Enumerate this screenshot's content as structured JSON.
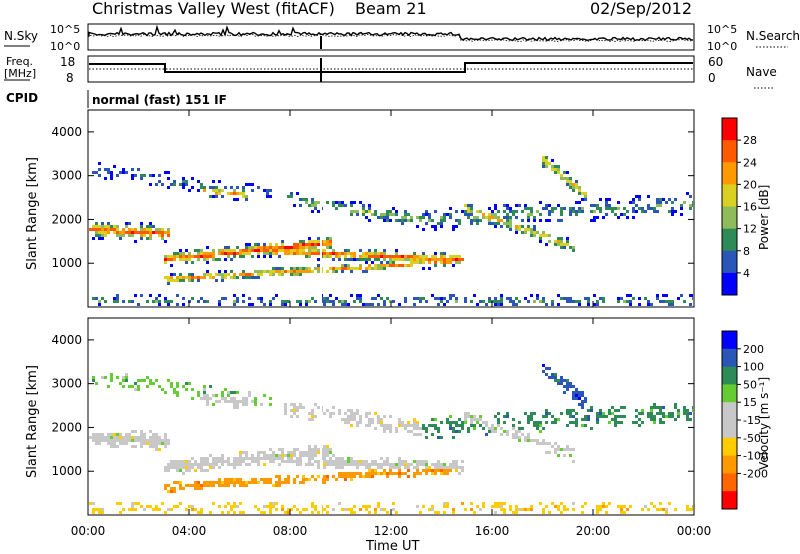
{
  "header": {
    "title": "Christmas Valley West (fitACF)",
    "beam": "Beam 21",
    "date": "02/Sep/2012"
  },
  "noise_panel": {
    "left_label": "N.Sky",
    "right_label": "N.Search",
    "top_tick": "10^5",
    "bottom_tick": "10^0"
  },
  "freq_panel": {
    "left_label_line1": "Freq.",
    "left_label_line2": "[MHz]",
    "left_ticks": [
      "18",
      "8"
    ],
    "right_label": "Nave",
    "right_ticks": [
      "60",
      "0"
    ]
  },
  "cpid": {
    "label": "CPID",
    "value": "normal (fast) 151 IF"
  },
  "colors": {
    "power_scale": [
      "#0000ff",
      "#2a56b8",
      "#2e8b57",
      "#8fbc5a",
      "#d9d021",
      "#ff9900",
      "#ff5a00",
      "#ff0000"
    ],
    "velocity_scale": [
      "#ff0000",
      "#ff6600",
      "#ff9900",
      "#ffcc00",
      "#c8c8c8",
      "#c8c8c8",
      "#66cc33",
      "#2e8b57",
      "#2a56b8",
      "#0000ff"
    ]
  },
  "chart_data": [
    {
      "type": "heatmap",
      "name": "power",
      "ylabel": "Slant Range [km]",
      "yticks": [
        "4000",
        "3000",
        "2000",
        "1000"
      ],
      "ylim": [
        0,
        4500
      ],
      "colorbar_label": "Power [dB]",
      "colorbar_ticks": [
        "28",
        "24",
        "20",
        "16",
        "12",
        "8",
        "4"
      ]
    },
    {
      "type": "heatmap",
      "name": "velocity",
      "ylabel": "Slant Range [km]",
      "yticks": [
        "4000",
        "3000",
        "2000",
        "1000"
      ],
      "ylim": [
        0,
        4500
      ],
      "colorbar_label": "Velocity [m s⁻¹]",
      "colorbar_ticks": [
        "200",
        "100",
        "50",
        "15",
        "-15",
        "-50",
        "-100",
        "-200"
      ],
      "xlabel": "Time UT",
      "xticks": [
        "00:00",
        "04:00",
        "08:00",
        "12:00",
        "16:00",
        "20:00",
        "00:00"
      ]
    }
  ]
}
